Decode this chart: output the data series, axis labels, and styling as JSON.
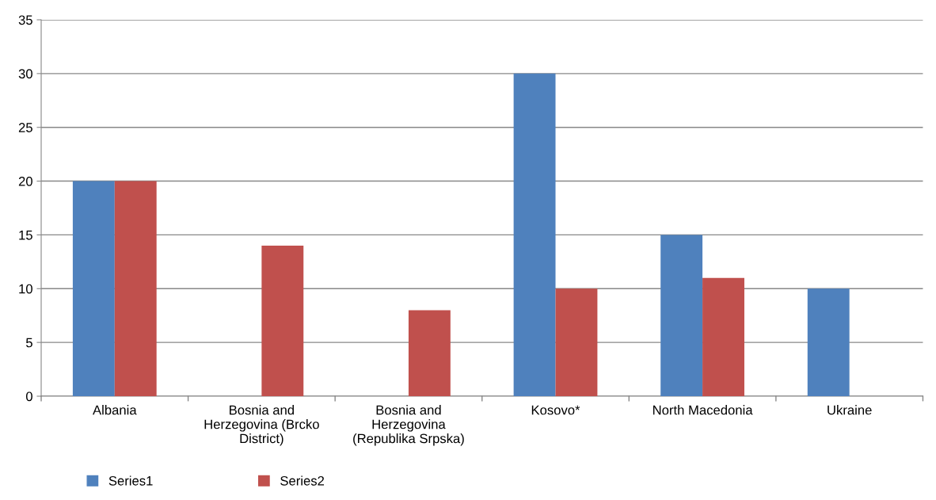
{
  "chart_data": {
    "type": "bar",
    "categories": [
      "Albania",
      "Bosnia and\nHerzegovina (Brcko\nDistrict)",
      "Bosnia and\nHerzegovina\n(Republika Srpska)",
      "Kosovo*",
      "North Macedonia",
      "Ukraine"
    ],
    "series": [
      {
        "name": "Series1",
        "color": "#4f81bd",
        "values": [
          20,
          null,
          null,
          30,
          15,
          10
        ]
      },
      {
        "name": "Series2",
        "color": "#c0504d",
        "values": [
          20,
          14,
          8,
          10,
          11,
          null
        ]
      }
    ],
    "ylim": [
      0,
      35
    ],
    "yticks": [
      0,
      5,
      10,
      15,
      20,
      25,
      30,
      35
    ],
    "grid": "y",
    "legend": "bottom"
  }
}
